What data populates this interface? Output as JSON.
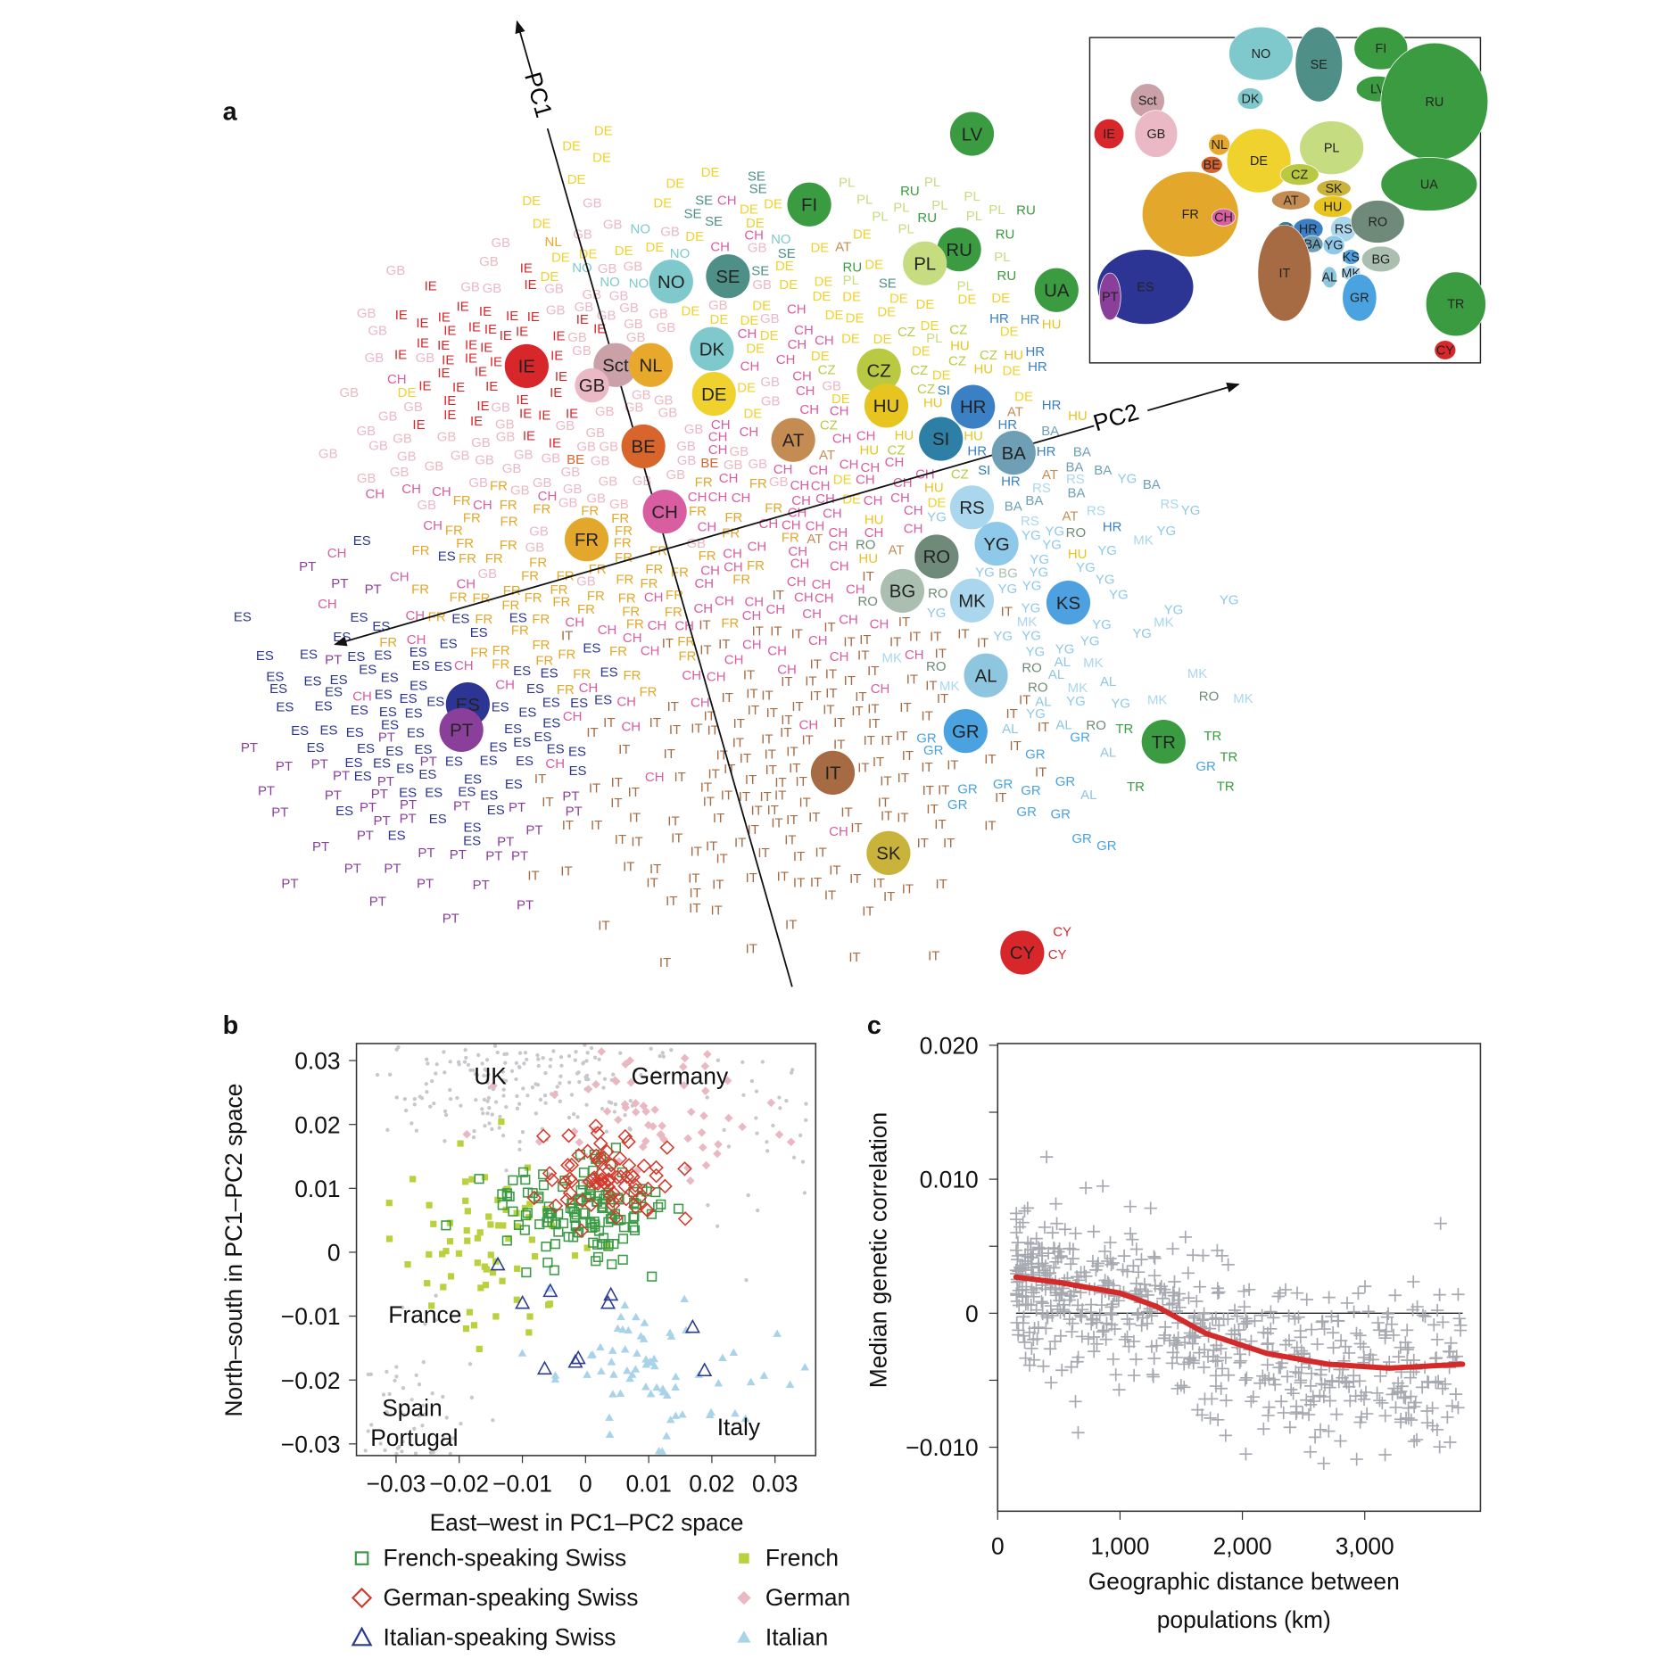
{
  "panels": {
    "a": "a",
    "b": "b",
    "c": "c"
  },
  "chart_data": [
    {
      "panel": "a",
      "type": "scatter",
      "axes": {
        "pc1": "PC1",
        "pc2": "PC2"
      },
      "populations": [
        {
          "code": "LV",
          "color": "#3b9b41"
        },
        {
          "code": "FI",
          "color": "#3b9b41"
        },
        {
          "code": "RU",
          "color": "#3b9b41"
        },
        {
          "code": "PL",
          "color": "#c6dc80"
        },
        {
          "code": "UA",
          "color": "#3b9b41"
        },
        {
          "code": "NO",
          "color": "#7fc9cd"
        },
        {
          "code": "SE",
          "color": "#4e8f88"
        },
        {
          "code": "DK",
          "color": "#7fc9cd"
        },
        {
          "code": "IE",
          "color": "#d7272b"
        },
        {
          "code": "Sct",
          "color": "#c9a1a6"
        },
        {
          "code": "GB",
          "color": "#eab9c5"
        },
        {
          "code": "NL",
          "color": "#e8a82b"
        },
        {
          "code": "DE",
          "color": "#f0d22e"
        },
        {
          "code": "CZ",
          "color": "#b9ca42"
        },
        {
          "code": "HU",
          "color": "#e8c420"
        },
        {
          "code": "AT",
          "color": "#c48b53"
        },
        {
          "code": "BE",
          "color": "#d8652b"
        },
        {
          "code": "SI",
          "color": "#2d7fa6"
        },
        {
          "code": "HR",
          "color": "#3b7fc4"
        },
        {
          "code": "BA",
          "color": "#6f9fb5"
        },
        {
          "code": "CH",
          "color": "#d85da1"
        },
        {
          "code": "FR",
          "color": "#e3a82b"
        },
        {
          "code": "RS",
          "color": "#aad7ed"
        },
        {
          "code": "YG",
          "color": "#8ec9e9"
        },
        {
          "code": "RO",
          "color": "#6f8a78"
        },
        {
          "code": "BG",
          "color": "#aabfaf"
        },
        {
          "code": "MK",
          "color": "#aad7ed"
        },
        {
          "code": "KS",
          "color": "#4da1e0"
        },
        {
          "code": "AL",
          "color": "#8ec6e0"
        },
        {
          "code": "GR",
          "color": "#4aa3e0"
        },
        {
          "code": "TR",
          "color": "#3b9b41"
        },
        {
          "code": "IT",
          "color": "#a66b43"
        },
        {
          "code": "SK",
          "color": "#c9b33b"
        },
        {
          "code": "ES",
          "color": "#2c3593"
        },
        {
          "code": "PT",
          "color": "#8a409b"
        },
        {
          "code": "CY",
          "color": "#d7272b"
        }
      ],
      "inset_map_labels": [
        "NO",
        "SE",
        "FI",
        "LV",
        "RU",
        "DK",
        "Sct",
        "GB",
        "IE",
        "NL",
        "BE",
        "DE",
        "PL",
        "UA",
        "CZ",
        "SK",
        "AT",
        "HU",
        "FR",
        "CH",
        "SI",
        "HR",
        "RS",
        "RO",
        "BA",
        "YG",
        "KS",
        "BG",
        "IT",
        "AL",
        "MK",
        "GR",
        "ES",
        "PT",
        "TR",
        "CY"
      ]
    },
    {
      "panel": "b",
      "type": "scatter",
      "xlabel": "East–west in PC1–PC2 space",
      "ylabel": "North–south in PC1–PC2 space",
      "xlim": [
        -0.036,
        0.036
      ],
      "ylim": [
        -0.033,
        0.033
      ],
      "xticks": [
        "−0.03",
        "−0.02",
        "−0.01",
        "0",
        "0.01",
        "0.02",
        "0.03"
      ],
      "xtick_values": [
        -0.03,
        -0.02,
        -0.01,
        0,
        0.01,
        0.02,
        0.03
      ],
      "yticks": [
        "0.03",
        "0.02",
        "0.01",
        "0",
        "−0.01",
        "−0.02",
        "−0.03"
      ],
      "ytick_values": [
        0.03,
        0.02,
        0.01,
        0,
        -0.01,
        -0.02,
        -0.03
      ],
      "annotations": [
        "UK",
        "Germany",
        "France",
        "Spain",
        "Portugal",
        "Italy"
      ],
      "legend": [
        {
          "name": "French-speaking Swiss",
          "marker": "open-square",
          "color": "#3a9a45"
        },
        {
          "name": "French",
          "marker": "filled-square",
          "color": "#b8d13c"
        },
        {
          "name": "German-speaking Swiss",
          "marker": "open-diamond",
          "color": "#d33a2c"
        },
        {
          "name": "German",
          "marker": "filled-diamond",
          "color": "#eab8c3"
        },
        {
          "name": "Italian-speaking Swiss",
          "marker": "open-triangle",
          "color": "#2b3a8f"
        },
        {
          "name": "Italian",
          "marker": "filled-triangle",
          "color": "#a9d3e8"
        }
      ],
      "other_color": "#c8c8cc"
    },
    {
      "panel": "c",
      "type": "scatter",
      "xlabel": [
        "Geographic distance between",
        "populations (km)"
      ],
      "ylabel": "Median genetic correlation",
      "xlim": [
        0,
        3950
      ],
      "ylim": [
        -0.0148,
        0.0198
      ],
      "xticks": [
        "0",
        "1,000",
        "2,000",
        "3,000"
      ],
      "xtick_values": [
        0,
        1000,
        2000,
        3000
      ],
      "yticks": [
        "0.020",
        "0.010",
        "0",
        "−0.010"
      ],
      "ytick_values": [
        0.02,
        0.01,
        0,
        -0.01
      ],
      "minor_ytick_values": [
        0.015,
        0.005,
        -0.005
      ],
      "point_color": "#a6a9b0",
      "trend_color": "#d42a2a",
      "trend": {
        "x": [
          150,
          500,
          1000,
          1300,
          1700,
          2200,
          2700,
          3200,
          3800
        ],
        "y": [
          0.0027,
          0.0023,
          0.0015,
          0.0005,
          -0.0015,
          -0.003,
          -0.0038,
          -0.0041,
          -0.0038
        ]
      }
    }
  ]
}
